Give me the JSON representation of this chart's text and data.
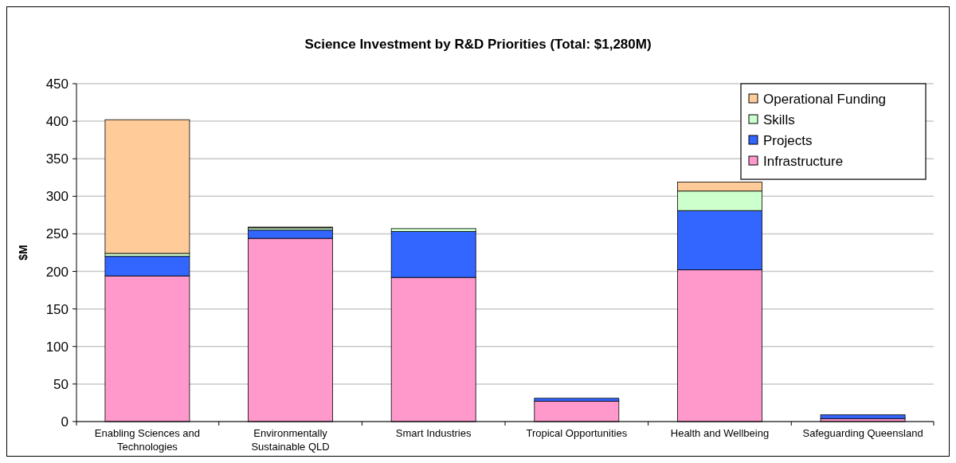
{
  "chart_data": {
    "type": "bar",
    "title": "Science Investment by R&D Priorities (Total: $1,280M)",
    "ylabel": "$M",
    "categories": [
      "Enabling Sciences and Technologies",
      "Environmentally Sustainable QLD",
      "Smart Industries",
      "Tropical Opportunities",
      "Health and Wellbeing",
      "Safeguarding Queensland"
    ],
    "stacked": true,
    "series": [
      {
        "name": "Infrastructure",
        "color": "#ff99cc",
        "values": [
          194,
          244,
          192,
          27,
          202,
          4
        ]
      },
      {
        "name": "Projects",
        "color": "#3366ff",
        "values": [
          26,
          11,
          61,
          4,
          79,
          5
        ]
      },
      {
        "name": "Skills",
        "color": "#ccffcc",
        "values": [
          4,
          3,
          4,
          0,
          26,
          0
        ]
      },
      {
        "name": "Operational Funding",
        "color": "#ffcc99",
        "values": [
          178,
          1,
          0,
          0,
          12,
          0
        ]
      }
    ],
    "ylim": [
      0,
      450
    ],
    "yticks": [
      0,
      50,
      100,
      150,
      200,
      250,
      300,
      350,
      400,
      450
    ],
    "grid": "y",
    "legend": "top right"
  }
}
